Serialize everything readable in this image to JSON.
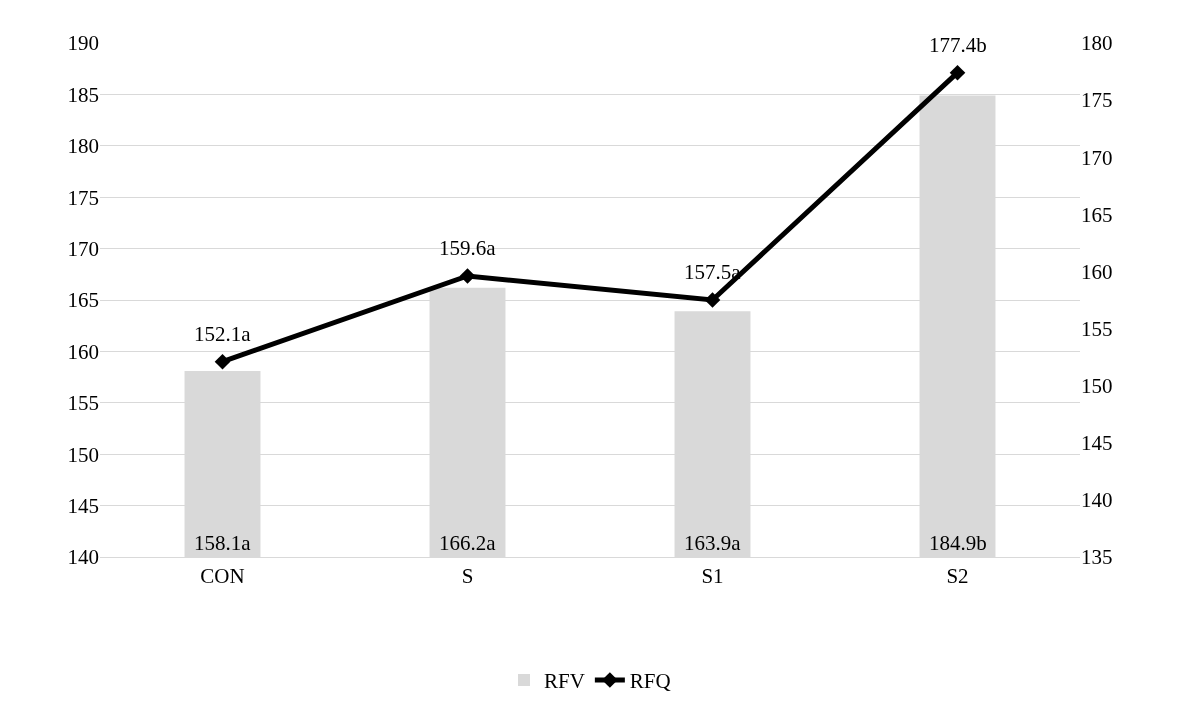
{
  "chart_data": {
    "type": "bar",
    "categories": [
      "CON",
      "S",
      "S1",
      "S2"
    ],
    "series": [
      {
        "name": "RFV",
        "color": "#d9d9d9",
        "values": [
          158.1,
          166.2,
          163.9,
          184.9
        ],
        "value_labels": [
          "158.1a",
          "166.2a",
          "163.9a",
          "184.9b"
        ]
      },
      {
        "name": "RFQ",
        "type": "line",
        "axis": "y2",
        "color": "#000000",
        "values": [
          152.1,
          159.6,
          157.5,
          177.4
        ],
        "value_labels": [
          "152.1a",
          "159.6a",
          "157.5a",
          "177.4b"
        ]
      }
    ],
    "ylim": [
      140,
      190
    ],
    "yticks": [
      140,
      145,
      150,
      155,
      160,
      165,
      170,
      175,
      180,
      185,
      190
    ],
    "y2lim": [
      135,
      180
    ],
    "y2ticks": [
      135,
      140,
      145,
      150,
      155,
      160,
      165,
      170,
      175,
      180
    ],
    "grid": "y",
    "legend": "bottom",
    "marker": "diamond",
    "line_style": "solid"
  }
}
